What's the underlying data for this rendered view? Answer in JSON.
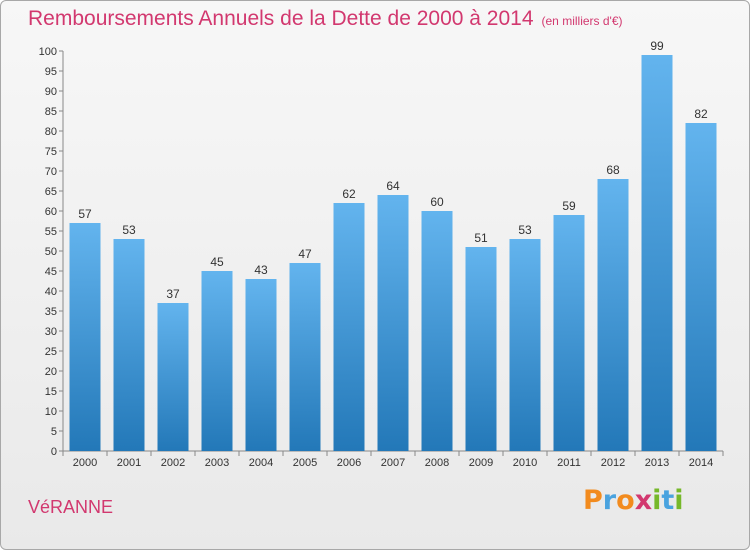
{
  "header": {
    "title": "Remboursements Annuels de la Dette de 2000 à 2014",
    "unit": "(en milliers d'€)"
  },
  "footer": {
    "place": "VéRANNE",
    "logo_letters": [
      "P",
      "r",
      "o",
      "x",
      "i",
      "t",
      "i"
    ],
    "logo_colors": [
      "#f28b1e",
      "#4aa3df",
      "#f28b1e",
      "#d2386f",
      "#76b82a",
      "#4aa3df",
      "#76b82a"
    ]
  },
  "colors": {
    "title": "#d2386f",
    "bar_top": "#63b4ee",
    "bar_bottom": "#2378b8"
  },
  "chart_data": {
    "type": "bar",
    "title": "Remboursements Annuels de la Dette de 2000 à 2014",
    "subtitle": "(en milliers d'€)",
    "categories": [
      "2000",
      "2001",
      "2002",
      "2003",
      "2004",
      "2005",
      "2006",
      "2007",
      "2008",
      "2009",
      "2010",
      "2011",
      "2012",
      "2013",
      "2014"
    ],
    "values": [
      57,
      53,
      37,
      45,
      43,
      47,
      62,
      64,
      60,
      51,
      53,
      59,
      68,
      99,
      82
    ],
    "ylim": [
      0,
      100
    ],
    "ytick_step": 5,
    "grid": false,
    "legend": "none"
  }
}
